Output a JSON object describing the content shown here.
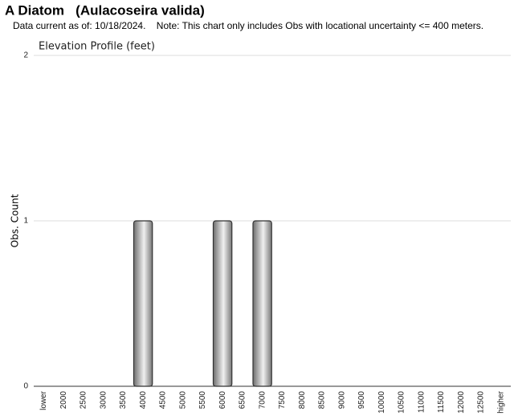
{
  "header": {
    "title": "A Diatom   (Aulacoseira valida)",
    "note": "Data current as of: 10/18/2024.    Note: This chart only includes Obs with locational uncertainty <= 400 meters."
  },
  "chart_data": {
    "type": "bar",
    "title": "Elevation Profile (feet)",
    "y_label": "Obs. Count",
    "categories": [
      "lower",
      "2000",
      "2500",
      "3000",
      "3500",
      "4000",
      "4500",
      "5000",
      "5500",
      "6000",
      "6500",
      "7000",
      "7500",
      "8000",
      "8500",
      "9000",
      "9500",
      "10000",
      "10500",
      "11000",
      "11500",
      "12000",
      "12500",
      "higher"
    ],
    "values": [
      0,
      0,
      0,
      0,
      0,
      1,
      0,
      0,
      0,
      1,
      0,
      1,
      0,
      0,
      0,
      0,
      0,
      0,
      0,
      0,
      0,
      0,
      0,
      0
    ],
    "color": "#8c8c8c",
    "ylim": [
      0,
      2
    ],
    "yticks": [
      0,
      1,
      2
    ],
    "grid": true
  }
}
